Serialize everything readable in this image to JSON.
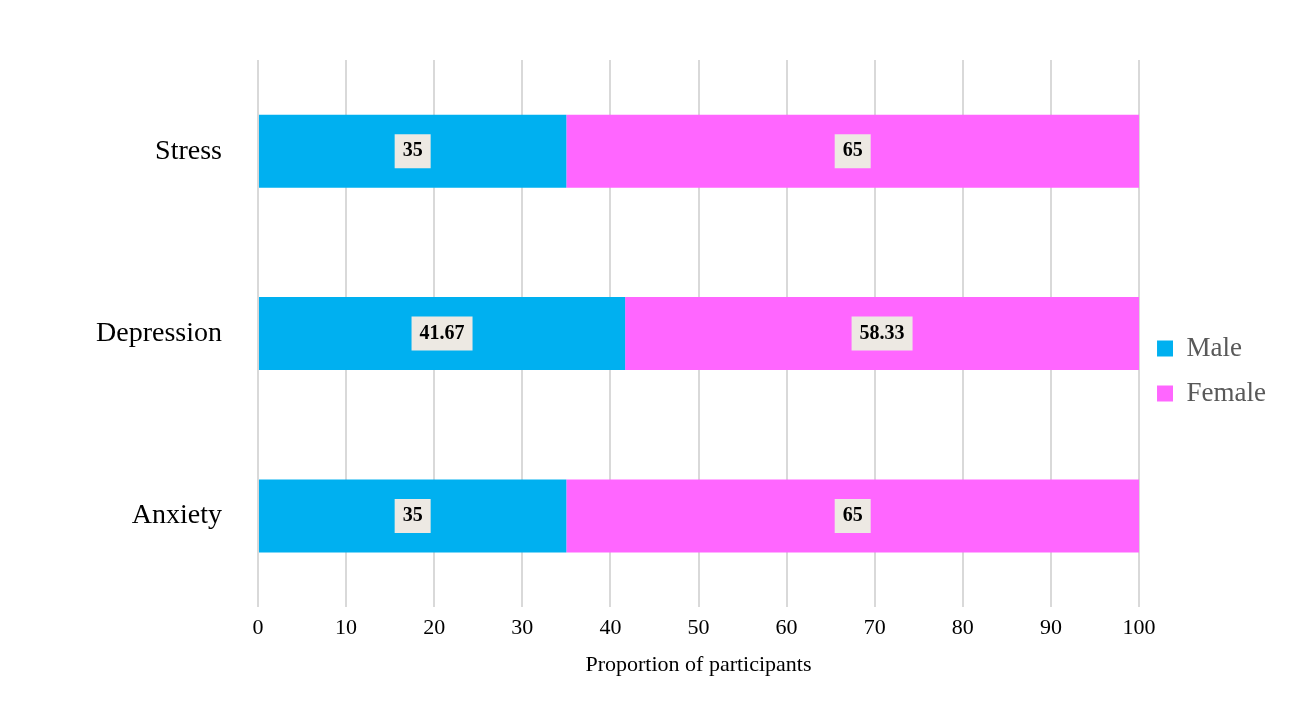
{
  "chart_data": {
    "type": "bar",
    "orientation": "horizontal",
    "stacked": true,
    "categories": [
      "Stress",
      "Depression",
      "Anxiety"
    ],
    "series": [
      {
        "name": "Male",
        "color": "#00b0f0",
        "values": [
          35,
          41.67,
          35
        ]
      },
      {
        "name": "Female",
        "color": "#ff66ff",
        "values": [
          65,
          58.33,
          65
        ]
      }
    ],
    "xlabel": "Proportion of participants",
    "xlim": [
      0,
      100
    ],
    "xticks": [
      0,
      10,
      20,
      30,
      40,
      50,
      60,
      70,
      80,
      90,
      100
    ],
    "grid": "x",
    "legend": "right",
    "data_labels": true
  }
}
